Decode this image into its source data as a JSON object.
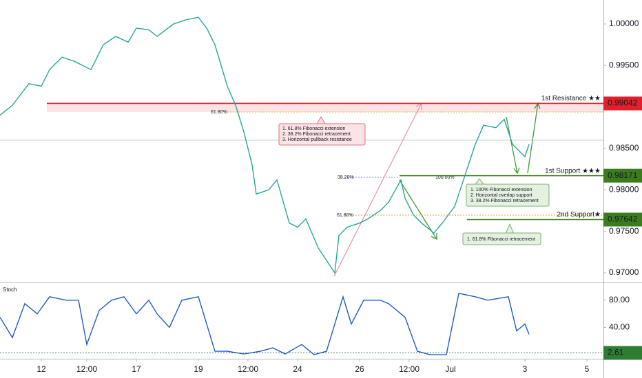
{
  "chart_data": [
    {
      "type": "line",
      "name": "price",
      "x": [
        0,
        3,
        7,
        10,
        12,
        15,
        18,
        22,
        25,
        28,
        31,
        33,
        36,
        38,
        42,
        45,
        48,
        50,
        52,
        55,
        57,
        59,
        61,
        62,
        65,
        67,
        68,
        70,
        72,
        74,
        77,
        79,
        81,
        82,
        84,
        87,
        89,
        92,
        94,
        97,
        98,
        100,
        102,
        105,
        107,
        110,
        112,
        115,
        117,
        120,
        122,
        124,
        127,
        128
      ],
      "values": [
        0.989,
        0.9902,
        0.9928,
        0.9925,
        0.9945,
        0.996,
        0.9955,
        0.9945,
        0.9975,
        0.9985,
        0.9978,
        0.9995,
        0.9993,
        0.9985,
        1.0,
        1.0005,
        1.0008,
        0.9995,
        0.9975,
        0.9925,
        0.9902,
        0.987,
        0.983,
        0.9795,
        0.98,
        0.9812,
        0.9795,
        0.976,
        0.9755,
        0.9765,
        0.973,
        0.9715,
        0.97,
        0.9745,
        0.9755,
        0.976,
        0.9765,
        0.9775,
        0.9785,
        0.9812,
        0.979,
        0.977,
        0.976,
        0.9748,
        0.976,
        0.978,
        0.981,
        0.9855,
        0.9878,
        0.9875,
        0.9885,
        0.9855,
        0.984,
        0.9855
      ],
      "color": "#26a69a",
      "xlim": [
        0,
        146
      ],
      "ylim": [
        0.96892,
        1.00289
      ],
      "yticks": [
        {
          "value": 1.0,
          "label": "1.00000"
        },
        {
          "value": 0.995,
          "label": "0.99500"
        },
        {
          "value": 0.985,
          "label": "0.98500"
        },
        {
          "value": 0.98,
          "label": "0.98000"
        },
        {
          "value": 0.975,
          "label": "0.97500"
        },
        {
          "value": 0.97,
          "label": "0.97000"
        }
      ],
      "levels": [
        {
          "name": "1st Resistance ★★",
          "value": 0.99042,
          "color": "#e0202a"
        },
        {
          "name": "1st Support ★★★",
          "value": 0.98171,
          "color": "#3b7d1e"
        },
        {
          "name": "2nd Support★",
          "value": 0.97642,
          "color": "#3b7d1e"
        }
      ]
    },
    {
      "type": "line",
      "name": "Stoch",
      "x": [
        0,
        3,
        6,
        9,
        12,
        16,
        19,
        21,
        24,
        27,
        30,
        33,
        36,
        38,
        41,
        44,
        48,
        52,
        55,
        59,
        63,
        66,
        69,
        73,
        76,
        79,
        83,
        85,
        88,
        92,
        94,
        98,
        101,
        104,
        108,
        111,
        115,
        118,
        123,
        125,
        127,
        128
      ],
      "values": [
        55,
        25,
        75,
        60,
        85,
        80,
        80,
        15,
        65,
        80,
        85,
        60,
        80,
        60,
        40,
        80,
        85,
        5,
        5,
        1,
        5,
        10,
        1,
        15,
        0,
        5,
        85,
        45,
        80,
        80,
        75,
        55,
        5,
        0,
        0,
        90,
        85,
        80,
        85,
        35,
        45,
        30
      ],
      "color": "#1e5bc6",
      "xlim": [
        0,
        146
      ],
      "ylim": [
        -6,
        104
      ],
      "yticks": [
        {
          "value": 80,
          "label": "80.00"
        },
        {
          "value": 40,
          "label": "40.00"
        }
      ],
      "level": 2.61,
      "xticks": [
        {
          "value": 10,
          "label": "12"
        },
        {
          "value": 21,
          "label": "12:00"
        },
        {
          "value": 33,
          "label": "17"
        },
        {
          "value": 48,
          "label": "19"
        },
        {
          "value": 60,
          "label": "12:00"
        },
        {
          "value": 72,
          "label": "24"
        },
        {
          "value": 87,
          "label": "26"
        },
        {
          "value": 99,
          "label": "12:00"
        },
        {
          "value": 109,
          "label": "Jul"
        },
        {
          "value": 127,
          "label": "3"
        },
        {
          "value": 142,
          "label": "5"
        }
      ]
    }
  ],
  "annotations": {
    "resistance_box": [
      "1. 61.8% Fibonacci extension",
      "2. 38.2% Fibonacci retracement",
      "3. Horizontal pullback resistance"
    ],
    "support_box": [
      "1. 100% Fibonacci extension",
      "2. Horizontal overlap support",
      "3. 38.2% Fibonacci retracement"
    ],
    "support2_box": [
      "1. 61.8% Fibonacci retracement"
    ],
    "fib_labels": [
      "61.80%",
      "38.20%",
      "100.00%",
      "61.80%"
    ]
  }
}
